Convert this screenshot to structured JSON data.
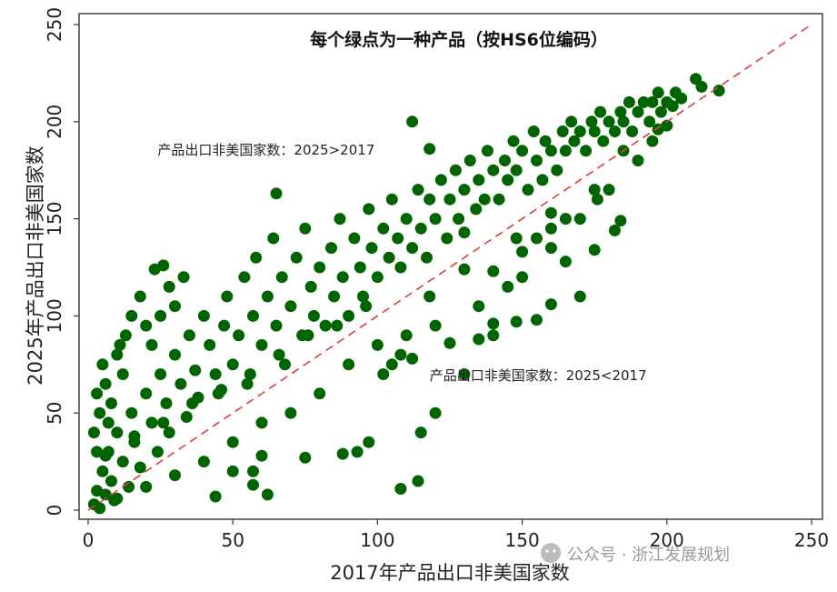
{
  "chart_data": {
    "type": "scatter",
    "title": "每个绿点为一种产品（按HS6位编码）",
    "xlabel": "2017年产品出口非美国家数",
    "ylabel": "2025年产品出口非美国家数",
    "xlim": [
      0,
      250
    ],
    "ylim": [
      0,
      250
    ],
    "x_ticks": [
      "0",
      "50",
      "100",
      "150",
      "200",
      "250"
    ],
    "y_ticks": [
      "0",
      "50",
      "100",
      "150",
      "200",
      "250"
    ],
    "grid": false,
    "point_color": "#006400",
    "reference_line": {
      "style": "dashed",
      "color": "#e23b3b",
      "from": [
        0,
        0
      ],
      "to": [
        250,
        250
      ]
    },
    "annotations": [
      {
        "text": "产品出口非美国家数：2025>2017",
        "x": 24,
        "y": 183
      },
      {
        "text": "产品出口非美国家数：2025<2017",
        "x": 118,
        "y": 67
      }
    ],
    "series": [
      {
        "points": [
          [
            2,
            3
          ],
          [
            3,
            10
          ],
          [
            4,
            1
          ],
          [
            5,
            20
          ],
          [
            6,
            8
          ],
          [
            7,
            30
          ],
          [
            8,
            15
          ],
          [
            9,
            5
          ],
          [
            10,
            40
          ],
          [
            12,
            25
          ],
          [
            14,
            12
          ],
          [
            15,
            50
          ],
          [
            16,
            35
          ],
          [
            18,
            22
          ],
          [
            20,
            60
          ],
          [
            22,
            45
          ],
          [
            24,
            30
          ],
          [
            25,
            70
          ],
          [
            27,
            55
          ],
          [
            28,
            40
          ],
          [
            30,
            80
          ],
          [
            32,
            65
          ],
          [
            34,
            48
          ],
          [
            35,
            90
          ],
          [
            37,
            72
          ],
          [
            38,
            58
          ],
          [
            40,
            100
          ],
          [
            42,
            85
          ],
          [
            44,
            70
          ],
          [
            45,
            60
          ],
          [
            47,
            95
          ],
          [
            48,
            110
          ],
          [
            50,
            75
          ],
          [
            52,
            90
          ],
          [
            54,
            120
          ],
          [
            55,
            65
          ],
          [
            57,
            100
          ],
          [
            58,
            130
          ],
          [
            60,
            85
          ],
          [
            62,
            110
          ],
          [
            64,
            140
          ],
          [
            65,
            95
          ],
          [
            67,
            120
          ],
          [
            68,
            75
          ],
          [
            70,
            105
          ],
          [
            72,
            130
          ],
          [
            74,
            90
          ],
          [
            75,
            145
          ],
          [
            77,
            115
          ],
          [
            78,
            100
          ],
          [
            80,
            125
          ],
          [
            82,
            95
          ],
          [
            84,
            135
          ],
          [
            85,
            110
          ],
          [
            87,
            150
          ],
          [
            88,
            120
          ],
          [
            90,
            100
          ],
          [
            92,
            140
          ],
          [
            94,
            125
          ],
          [
            95,
            110
          ],
          [
            97,
            155
          ],
          [
            98,
            135
          ],
          [
            100,
            120
          ],
          [
            102,
            145
          ],
          [
            104,
            130
          ],
          [
            105,
            160
          ],
          [
            107,
            140
          ],
          [
            108,
            125
          ],
          [
            110,
            150
          ],
          [
            112,
            135
          ],
          [
            114,
            165
          ],
          [
            115,
            145
          ],
          [
            117,
            130
          ],
          [
            118,
            160
          ],
          [
            120,
            150
          ],
          [
            122,
            170
          ],
          [
            124,
            140
          ],
          [
            125,
            160
          ],
          [
            127,
            175
          ],
          [
            128,
            150
          ],
          [
            130,
            165
          ],
          [
            132,
            180
          ],
          [
            134,
            155
          ],
          [
            135,
            170
          ],
          [
            137,
            160
          ],
          [
            138,
            185
          ],
          [
            140,
            175
          ],
          [
            142,
            160
          ],
          [
            144,
            180
          ],
          [
            145,
            170
          ],
          [
            147,
            190
          ],
          [
            148,
            175
          ],
          [
            150,
            185
          ],
          [
            152,
            165
          ],
          [
            154,
            195
          ],
          [
            155,
            180
          ],
          [
            157,
            170
          ],
          [
            158,
            190
          ],
          [
            160,
            185
          ],
          [
            162,
            175
          ],
          [
            164,
            195
          ],
          [
            165,
            185
          ],
          [
            167,
            200
          ],
          [
            168,
            190
          ],
          [
            170,
            195
          ],
          [
            172,
            185
          ],
          [
            174,
            200
          ],
          [
            175,
            195
          ],
          [
            177,
            205
          ],
          [
            178,
            190
          ],
          [
            180,
            200
          ],
          [
            182,
            195
          ],
          [
            184,
            205
          ],
          [
            185,
            200
          ],
          [
            187,
            210
          ],
          [
            188,
            195
          ],
          [
            190,
            205
          ],
          [
            192,
            210
          ],
          [
            194,
            200
          ],
          [
            195,
            210
          ],
          [
            197,
            215
          ],
          [
            198,
            205
          ],
          [
            200,
            210
          ],
          [
            203,
            215
          ],
          [
            205,
            212
          ],
          [
            210,
            222
          ],
          [
            212,
            218
          ],
          [
            218,
            216
          ],
          [
            200,
            198
          ],
          [
            195,
            190
          ],
          [
            23,
            124
          ],
          [
            26,
            126
          ],
          [
            65,
            163
          ],
          [
            118,
            186
          ],
          [
            130,
            143
          ],
          [
            160,
            153
          ],
          [
            176,
            160
          ],
          [
            184,
            149
          ],
          [
            197,
            196
          ],
          [
            202,
            208
          ],
          [
            108,
            11
          ],
          [
            114,
            15
          ],
          [
            112,
            200
          ],
          [
            120,
            50
          ],
          [
            115,
            40
          ],
          [
            130,
            70
          ],
          [
            140,
            90
          ],
          [
            150,
            120
          ],
          [
            160,
            135
          ],
          [
            170,
            150
          ],
          [
            180,
            165
          ],
          [
            190,
            180
          ],
          [
            135,
            105
          ],
          [
            145,
            115
          ],
          [
            155,
            140
          ],
          [
            165,
            150
          ],
          [
            175,
            165
          ],
          [
            185,
            185
          ],
          [
            120,
            95
          ],
          [
            110,
            90
          ],
          [
            100,
            85
          ],
          [
            90,
            75
          ],
          [
            80,
            60
          ],
          [
            70,
            50
          ],
          [
            60,
            45
          ],
          [
            50,
            35
          ],
          [
            40,
            25
          ],
          [
            30,
            18
          ],
          [
            20,
            12
          ],
          [
            10,
            6
          ],
          [
            96,
            105
          ],
          [
            86,
            95
          ],
          [
            76,
            90
          ],
          [
            66,
            80
          ],
          [
            56,
            70
          ],
          [
            46,
            62
          ],
          [
            36,
            55
          ],
          [
            26,
            45
          ],
          [
            16,
            38
          ],
          [
            6,
            28
          ],
          [
            97,
            35
          ],
          [
            93,
            30
          ],
          [
            88,
            29
          ],
          [
            75,
            27
          ],
          [
            60,
            28
          ],
          [
            57,
            20
          ],
          [
            62,
            8
          ],
          [
            57,
            13
          ],
          [
            44,
            7
          ],
          [
            50,
            20
          ],
          [
            3,
            60
          ],
          [
            5,
            75
          ],
          [
            4,
            50
          ],
          [
            2,
            40
          ],
          [
            6,
            65
          ],
          [
            8,
            55
          ],
          [
            10,
            80
          ],
          [
            12,
            70
          ],
          [
            3,
            30
          ],
          [
            7,
            45
          ],
          [
            11,
            85
          ],
          [
            13,
            90
          ],
          [
            15,
            100
          ],
          [
            18,
            110
          ],
          [
            20,
            95
          ],
          [
            22,
            85
          ],
          [
            25,
            100
          ],
          [
            28,
            115
          ],
          [
            30,
            105
          ],
          [
            33,
            120
          ],
          [
            102,
            70
          ],
          [
            105,
            75
          ],
          [
            108,
            80
          ],
          [
            112,
            78
          ],
          [
            125,
            86
          ],
          [
            135,
            88
          ],
          [
            140,
            96
          ],
          [
            148,
            97
          ],
          [
            155,
            98
          ],
          [
            160,
            106
          ],
          [
            170,
            110
          ],
          [
            165,
            128
          ],
          [
            175,
            134
          ],
          [
            182,
            144
          ],
          [
            140,
            123
          ],
          [
            148,
            140
          ],
          [
            160,
            145
          ],
          [
            150,
            133
          ],
          [
            130,
            124
          ],
          [
            118,
            110
          ]
        ]
      }
    ]
  },
  "watermark": "公众号 · 浙江发展规划"
}
